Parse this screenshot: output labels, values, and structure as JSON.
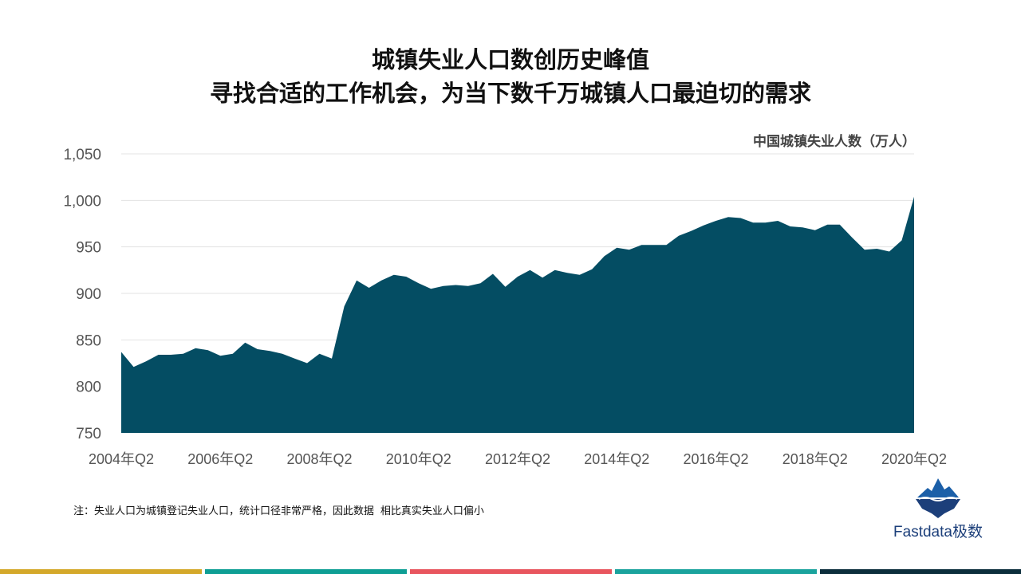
{
  "header": {
    "title_line1": "城镇失业人口数创历史峰值",
    "title_line2": "寻找合适的工作机会，为当下数千万城镇人口最迫切的需求"
  },
  "footnote": "注：失业人口为城镇登记失业人口，统计口径非常严格，因此数据 相比真实失业人口偏小",
  "logo": {
    "text": "Fastdata极数",
    "icon": "iceberg-icon"
  },
  "colors": {
    "area": "#044d63",
    "grid": "#e3e3e3",
    "bottom_bar": [
      "#d4a82a",
      "#0e9e94",
      "#e8555e",
      "#1aa39d",
      "#0c2e3c"
    ]
  },
  "chart_data": {
    "type": "area",
    "title": "",
    "unit_label": "中国城镇失业人数（万人）",
    "ylim": [
      750,
      1050
    ],
    "yticks": [
      "750",
      "800",
      "850",
      "900",
      "950",
      "1,000",
      "1,050"
    ],
    "ytick_values": [
      750,
      800,
      850,
      900,
      950,
      1000,
      1050
    ],
    "xtick_labels": [
      "2004年Q2",
      "2006年Q2",
      "2008年Q2",
      "2010年Q2",
      "2012年Q2",
      "2014年Q2",
      "2016年Q2",
      "2018年Q2",
      "2020年Q2"
    ],
    "grid": true,
    "series": [
      {
        "x": [
          "2004Q2",
          "2004Q3",
          "2004Q4",
          "2005Q1",
          "2005Q2",
          "2005Q3",
          "2005Q4",
          "2006Q1",
          "2006Q2",
          "2006Q3",
          "2006Q4",
          "2007Q1",
          "2007Q2",
          "2007Q3",
          "2007Q4",
          "2008Q1",
          "2008Q2",
          "2008Q3",
          "2008Q4",
          "2009Q1",
          "2009Q2",
          "2009Q3",
          "2009Q4",
          "2010Q1",
          "2010Q2",
          "2010Q3",
          "2010Q4",
          "2011Q1",
          "2011Q2",
          "2011Q3",
          "2011Q4",
          "2012Q1",
          "2012Q2",
          "2012Q3",
          "2012Q4",
          "2013Q1",
          "2013Q2",
          "2013Q3",
          "2013Q4",
          "2014Q1",
          "2014Q2",
          "2014Q3",
          "2014Q4",
          "2015Q1",
          "2015Q2",
          "2015Q3",
          "2015Q4",
          "2016Q1",
          "2016Q2",
          "2016Q3",
          "2016Q4",
          "2017Q1",
          "2017Q2",
          "2017Q3",
          "2017Q4",
          "2018Q1",
          "2018Q2",
          "2018Q3",
          "2018Q4",
          "2019Q1",
          "2019Q2",
          "2019Q3",
          "2019Q4",
          "2020Q1",
          "2020Q2"
        ],
        "values": [
          837,
          821,
          827,
          834,
          834,
          835,
          841,
          839,
          833,
          835,
          847,
          840,
          838,
          835,
          830,
          825,
          835,
          830,
          886,
          914,
          906,
          914,
          920,
          918,
          911,
          905,
          908,
          909,
          908,
          911,
          921,
          907,
          918,
          925,
          917,
          925,
          922,
          920,
          926,
          940,
          949,
          947,
          952,
          952,
          952,
          962,
          967,
          973,
          978,
          982,
          981,
          976,
          976,
          978,
          972,
          971,
          968,
          974,
          974,
          960,
          947,
          948,
          945,
          957,
          1004
        ]
      }
    ]
  }
}
